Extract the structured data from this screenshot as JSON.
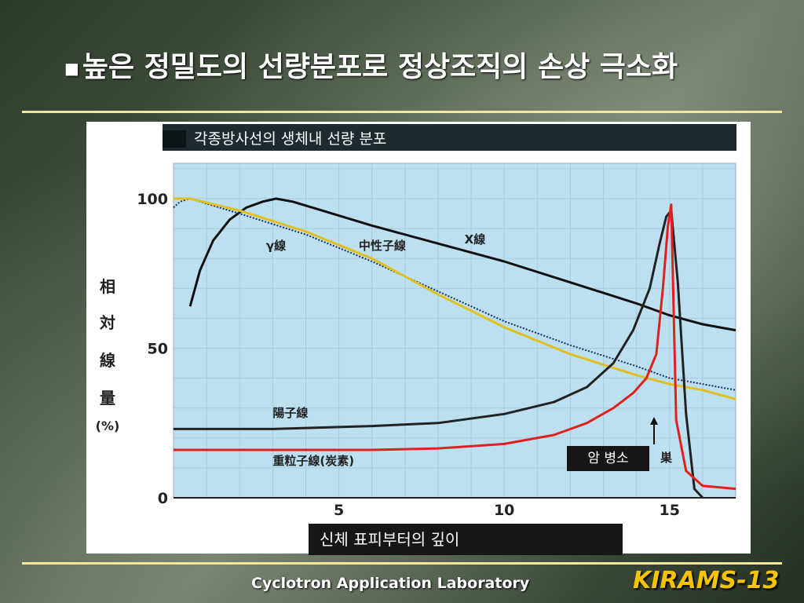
{
  "slide": {
    "bullet": "■",
    "title": "높은 정밀도의 선량분포로 정상조직의 손상 극소화",
    "footer_text": "Cyclotron Application Laboratory",
    "footer_logo": "KIRAMS-13"
  },
  "chart_data": {
    "type": "line",
    "title": "각종방사선의 생체내 선량 분포",
    "xlabel": "신체 표피부터의 깊이",
    "ylabel": [
      "相",
      "対",
      "線",
      "量",
      "(%)"
    ],
    "xlim": [
      0,
      17
    ],
    "ylim": [
      0,
      100
    ],
    "xticks": [
      5,
      10,
      15
    ],
    "yticks": [
      0,
      50,
      100
    ],
    "annotation": "암 병소",
    "annotation_arrow_label": "巣",
    "series": [
      {
        "name": "X線",
        "color": "#111111",
        "style": "solid",
        "x": [
          0.5,
          0.8,
          1.2,
          1.7,
          2.2,
          2.7,
          3.1,
          3.6,
          4.5,
          6,
          8,
          10,
          12,
          14,
          15,
          16,
          17
        ],
        "y": [
          64,
          76,
          86,
          93,
          97,
          99,
          100,
          99,
          96,
          91,
          85,
          79,
          72,
          65,
          61,
          58,
          56
        ]
      },
      {
        "name": "γ線",
        "color": "#1a2f6a",
        "style": "dotted",
        "x": [
          0,
          0.2,
          0.5,
          2,
          4,
          6,
          8,
          10,
          12,
          14,
          15,
          16,
          17
        ],
        "y": [
          97,
          99,
          100,
          95,
          88,
          79,
          69,
          59,
          51,
          44,
          40,
          38,
          36
        ]
      },
      {
        "name": "中性子線",
        "color": "#e0c020",
        "style": "solid",
        "x": [
          0,
          0.5,
          2,
          4,
          6,
          8,
          10,
          12,
          14,
          15,
          16,
          17
        ],
        "y": [
          100,
          100,
          96,
          89,
          80,
          68,
          57,
          48,
          41,
          38,
          36,
          33
        ]
      },
      {
        "name": "陽子線",
        "color": "#222222",
        "style": "solid",
        "x": [
          0,
          3,
          6,
          8,
          10,
          11.5,
          12.5,
          13.3,
          13.9,
          14.4,
          14.7,
          14.9,
          15.05,
          15.25,
          15.5,
          15.75,
          16
        ],
        "y": [
          23,
          23,
          24,
          25,
          28,
          32,
          37,
          45,
          56,
          70,
          85,
          94,
          96,
          72,
          28,
          3,
          0
        ]
      },
      {
        "name": "重粒子線(炭素)",
        "color": "#e02020",
        "style": "solid",
        "x": [
          0,
          3,
          6,
          8,
          10,
          11.5,
          12.5,
          13.3,
          13.9,
          14.3,
          14.6,
          14.8,
          14.95,
          15.05,
          15.2,
          15.5,
          16,
          17
        ],
        "y": [
          16,
          16,
          16,
          16.5,
          18,
          21,
          25,
          30,
          35,
          40,
          48,
          70,
          91,
          98,
          26,
          9,
          4,
          3
        ]
      }
    ],
    "series_labels": [
      {
        "text": "γ線",
        "x": 2.8,
        "y": 83
      },
      {
        "text": "中性子線",
        "x": 5.6,
        "y": 83
      },
      {
        "text": "X線",
        "x": 8.8,
        "y": 85
      },
      {
        "text": "陽子線",
        "x": 3.0,
        "y": 27
      },
      {
        "text": "重粒子線(炭素)",
        "x": 3.0,
        "y": 11
      }
    ]
  }
}
